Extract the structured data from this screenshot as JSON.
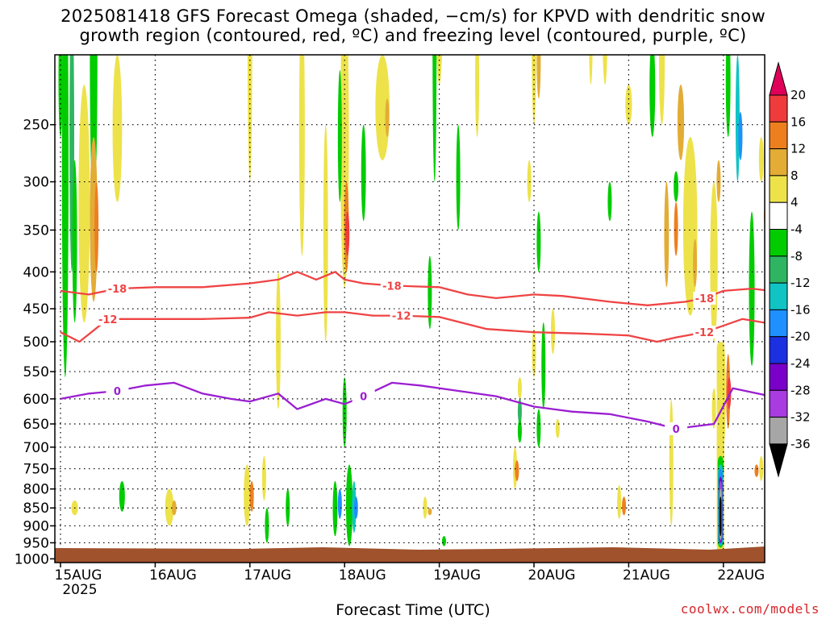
{
  "title_line1": "2025081418 GFS Forecast Omega (shaded, −cm/s) for KPVD with dendritic snow",
  "title_line2": "growth region (contoured, red, ºC) and freezing level (contoured, purple, ºC)",
  "xlabel": "Forecast Time (UTC)",
  "credit": "coolwx.com/models",
  "chart_data": {
    "type": "heatmap",
    "x_ticks": [
      "15AUG",
      "16AUG",
      "17AUG",
      "18AUG",
      "19AUG",
      "20AUG",
      "21AUG",
      "22AUG"
    ],
    "x_year_label": "2025",
    "y_ticks": [
      250,
      300,
      350,
      400,
      450,
      500,
      550,
      600,
      650,
      700,
      750,
      800,
      850,
      900,
      950,
      1000
    ],
    "y_scale": "log-pressure (inverted)",
    "colorbar": {
      "levels": [
        20,
        16,
        12,
        8,
        4,
        -4,
        -8,
        -12,
        -16,
        -20,
        -24,
        -28,
        -32,
        -36
      ],
      "colors": [
        "#e0005a",
        "#ef3b3b",
        "#ee7f1f",
        "#e3ac35",
        "#ede24a",
        "#ffffff",
        "#00cc00",
        "#2fb562",
        "#10c4c4",
        "#1e90ff",
        "#1b30e0",
        "#7a00c9",
        "#a83ce0",
        "#a6a6a6",
        "#000000"
      ]
    },
    "contours": [
      {
        "label": "-18",
        "color": "#ef4444",
        "time_days": [
          0,
          0.3,
          0.6,
          1.0,
          1.5,
          2.0,
          2.3,
          2.5,
          2.7,
          2.9,
          3.0,
          3.2,
          3.5,
          4.0,
          4.3,
          4.6,
          5.0,
          5.3,
          5.8,
          6.2,
          6.6,
          6.8,
          7.0,
          7.3,
          7.5
        ],
        "pressure_hpa": [
          425,
          430,
          422,
          420,
          420,
          415,
          410,
          400,
          410,
          400,
          410,
          415,
          418,
          420,
          430,
          435,
          430,
          432,
          440,
          445,
          440,
          435,
          425,
          422,
          425
        ]
      },
      {
        "label": "-12",
        "color": "#ef4444",
        "time_days": [
          0,
          0.2,
          0.5,
          1.0,
          1.5,
          2.0,
          2.2,
          2.5,
          2.8,
          3.0,
          3.3,
          3.6,
          4.0,
          4.5,
          5.0,
          5.5,
          6.0,
          6.3,
          6.5,
          6.8,
          7.0,
          7.2,
          7.5
        ],
        "pressure_hpa": [
          485,
          500,
          465,
          465,
          465,
          463,
          455,
          460,
          455,
          455,
          460,
          460,
          462,
          480,
          485,
          487,
          490,
          500,
          493,
          485,
          475,
          465,
          472
        ]
      },
      {
        "label": "0",
        "color": "#9b1ed1",
        "time_days": [
          0,
          0.3,
          0.6,
          0.9,
          1.2,
          1.5,
          1.8,
          2.0,
          2.3,
          2.5,
          2.8,
          3.0,
          3.2,
          3.5,
          3.8,
          4.2,
          4.6,
          5.0,
          5.4,
          5.8,
          6.2,
          6.5,
          6.9,
          7.1,
          7.5
        ],
        "pressure_hpa": [
          600,
          590,
          585,
          575,
          570,
          590,
          600,
          605,
          590,
          620,
          600,
          610,
          595,
          570,
          575,
          585,
          595,
          615,
          625,
          630,
          645,
          660,
          650,
          580,
          595
        ]
      }
    ]
  }
}
